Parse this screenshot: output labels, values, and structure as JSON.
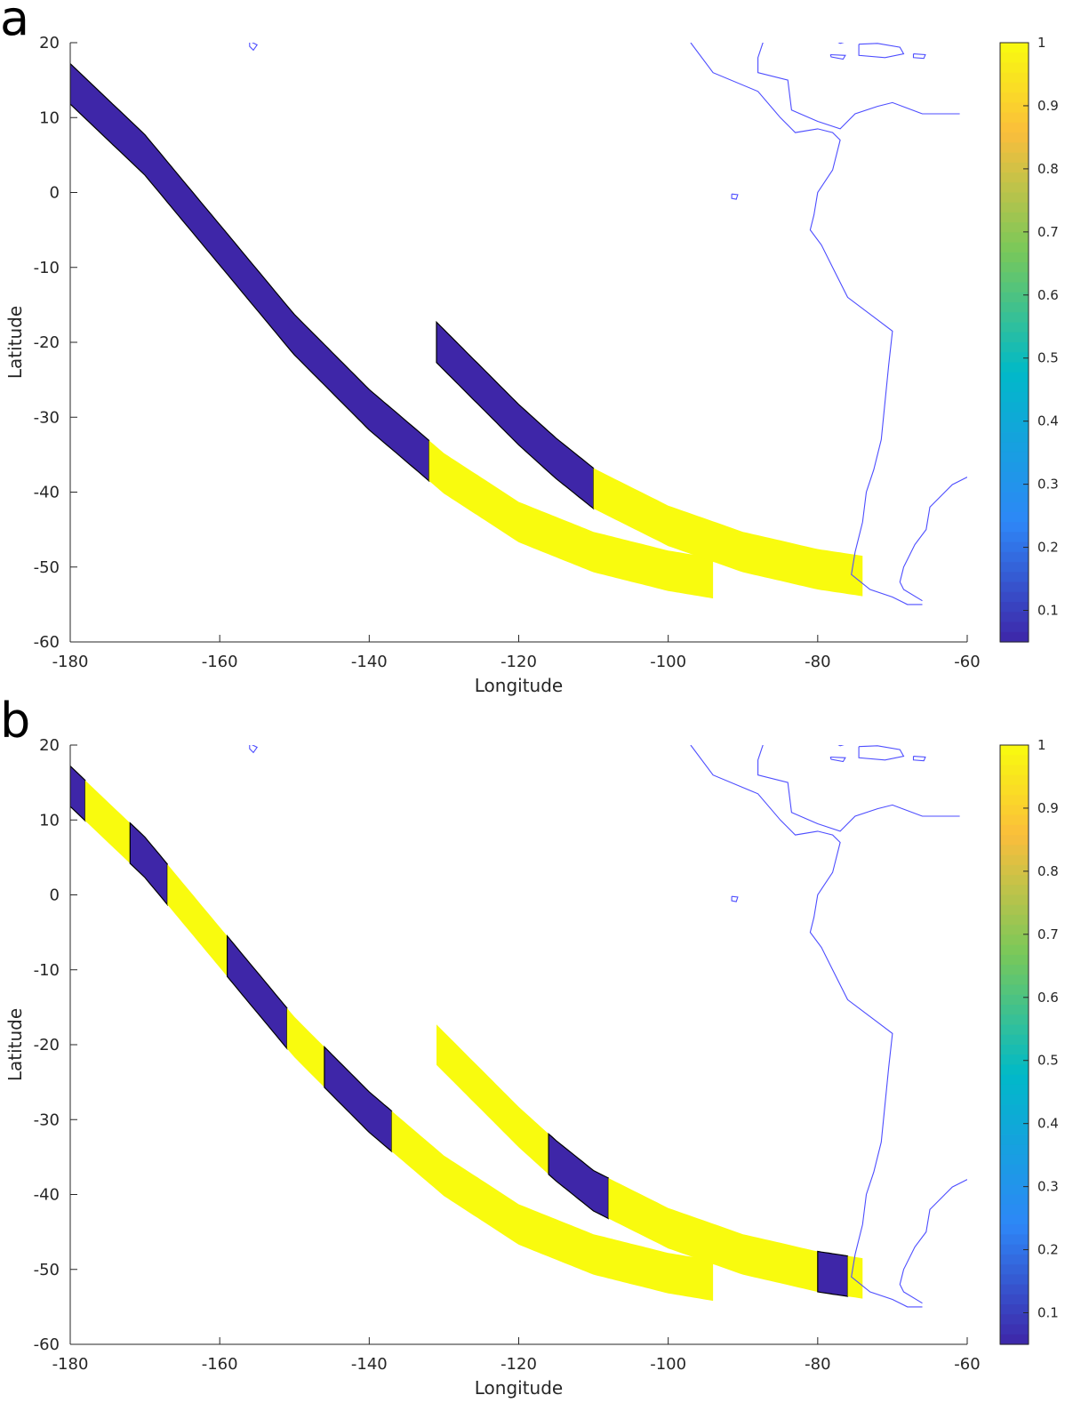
{
  "chart_data": [
    {
      "panel": "a",
      "type": "heatmap",
      "title": "",
      "xlabel": "Longitude",
      "ylabel": "Latitude",
      "xlim": [
        -180,
        -60
      ],
      "ylim": [
        -60,
        20
      ],
      "xticks": [
        "-180",
        "-160",
        "-140",
        "-120",
        "-100",
        "-80",
        "-60"
      ],
      "yticks": [
        "20",
        "10",
        "0",
        "-10",
        "-20",
        "-30",
        "-40",
        "-50",
        "-60"
      ],
      "colorbar": {
        "min": 0.05,
        "max": 1.0,
        "ticks": [
          "1",
          "0.9",
          "0.8",
          "0.7",
          "0.6",
          "0.5",
          "0.4",
          "0.3",
          "0.2",
          "0.1"
        ]
      },
      "colors": {
        "low": "#3e26a8",
        "high": "#f9fb0e",
        "coast": "#4d4dff",
        "contour": "#000000"
      },
      "swaths": [
        {
          "name": "west-swath",
          "track": [
            [
              -180,
              14.5
            ],
            [
              -170,
              5
            ],
            [
              -160,
              -7
            ],
            [
              -150,
              -19
            ],
            [
              -140,
              -29
            ],
            [
              -130,
              -37.5
            ],
            [
              -120,
              -44
            ],
            [
              -110,
              -48
            ],
            [
              -100,
              -50.5
            ],
            [
              -94,
              -51.5
            ]
          ],
          "segments": [
            {
              "value": 0.05,
              "from_lon": -180,
              "to_lon": -132
            },
            {
              "value": 1.0,
              "from_lon": -132,
              "to_lon": -94
            }
          ]
        },
        {
          "name": "east-swath",
          "track": [
            [
              -131,
              -20
            ],
            [
              -125,
              -26
            ],
            [
              -120,
              -31
            ],
            [
              -115,
              -35.5
            ],
            [
              -110,
              -39.5
            ],
            [
              -100,
              -44.5
            ],
            [
              -90,
              -48
            ],
            [
              -80,
              -50.3
            ],
            [
              -74,
              -51.2
            ]
          ],
          "segments": [
            {
              "value": 0.05,
              "from_lon": -131,
              "to_lon": -110
            },
            {
              "value": 1.0,
              "from_lon": -110,
              "to_lon": -74
            }
          ]
        }
      ]
    },
    {
      "panel": "b",
      "type": "heatmap",
      "title": "",
      "xlabel": "Longitude",
      "ylabel": "Latitude",
      "xlim": [
        -180,
        -60
      ],
      "ylim": [
        -60,
        20
      ],
      "xticks": [
        "-180",
        "-160",
        "-140",
        "-120",
        "-100",
        "-80",
        "-60"
      ],
      "yticks": [
        "20",
        "10",
        "0",
        "-10",
        "-20",
        "-30",
        "-40",
        "-50",
        "-60"
      ],
      "colorbar": {
        "min": 0.05,
        "max": 1.0,
        "ticks": [
          "1",
          "0.9",
          "0.8",
          "0.7",
          "0.6",
          "0.5",
          "0.4",
          "0.3",
          "0.2",
          "0.1"
        ]
      },
      "colors": {
        "low": "#3e26a8",
        "high": "#f9fb0e",
        "coast": "#4d4dff",
        "contour": "#000000"
      },
      "swaths": [
        {
          "name": "west-swath",
          "track": [
            [
              -180,
              14.5
            ],
            [
              -170,
              5
            ],
            [
              -160,
              -7
            ],
            [
              -150,
              -19
            ],
            [
              -140,
              -29
            ],
            [
              -130,
              -37.5
            ],
            [
              -120,
              -44
            ],
            [
              -110,
              -48
            ],
            [
              -100,
              -50.5
            ],
            [
              -94,
              -51.5
            ]
          ],
          "segments": [
            {
              "value": 0.05,
              "from_lon": -180,
              "to_lon": -178
            },
            {
              "value": 1.0,
              "from_lon": -178,
              "to_lon": -172
            },
            {
              "value": 0.05,
              "from_lon": -172,
              "to_lon": -167
            },
            {
              "value": 1.0,
              "from_lon": -167,
              "to_lon": -159
            },
            {
              "value": 0.05,
              "from_lon": -159,
              "to_lon": -151
            },
            {
              "value": 1.0,
              "from_lon": -151,
              "to_lon": -146
            },
            {
              "value": 0.05,
              "from_lon": -146,
              "to_lon": -137
            },
            {
              "value": 1.0,
              "from_lon": -137,
              "to_lon": -94
            }
          ]
        },
        {
          "name": "east-swath",
          "track": [
            [
              -131,
              -20
            ],
            [
              -125,
              -26
            ],
            [
              -120,
              -31
            ],
            [
              -115,
              -35.5
            ],
            [
              -110,
              -39.5
            ],
            [
              -100,
              -44.5
            ],
            [
              -90,
              -48
            ],
            [
              -80,
              -50.3
            ],
            [
              -74,
              -51.2
            ]
          ],
          "segments": [
            {
              "value": 1.0,
              "from_lon": -131,
              "to_lon": -116
            },
            {
              "value": 0.05,
              "from_lon": -116,
              "to_lon": -108
            },
            {
              "value": 1.0,
              "from_lon": -108,
              "to_lon": -80
            },
            {
              "value": 0.05,
              "from_lon": -80,
              "to_lon": -76
            },
            {
              "value": 1.0,
              "from_lon": -76,
              "to_lon": -74
            }
          ]
        }
      ]
    }
  ],
  "coastlines": [
    {
      "name": "central-south-america-west-coast",
      "points": [
        [
          -97,
          20
        ],
        [
          -94,
          16
        ],
        [
          -88,
          13.5
        ],
        [
          -85,
          10
        ],
        [
          -83,
          8
        ],
        [
          -80,
          8.5
        ],
        [
          -78,
          8
        ],
        [
          -77,
          7
        ],
        [
          -78,
          3
        ],
        [
          -80,
          0
        ],
        [
          -80.5,
          -3
        ],
        [
          -81,
          -5
        ],
        [
          -79.5,
          -7
        ],
        [
          -78,
          -10
        ],
        [
          -76,
          -14
        ],
        [
          -72,
          -17
        ],
        [
          -70,
          -18.5
        ],
        [
          -70.5,
          -23
        ],
        [
          -71,
          -28
        ],
        [
          -71.5,
          -33
        ],
        [
          -72.5,
          -37
        ],
        [
          -73.5,
          -40
        ],
        [
          -74,
          -44
        ],
        [
          -75,
          -48
        ],
        [
          -75.5,
          -51
        ],
        [
          -73,
          -53
        ],
        [
          -70,
          -54
        ],
        [
          -68,
          -55
        ],
        [
          -66,
          -55
        ]
      ]
    },
    {
      "name": "south-america-atlantic-coast",
      "points": [
        [
          -60,
          -38
        ],
        [
          -62,
          -39
        ],
        [
          -63,
          -40
        ],
        [
          -65,
          -42
        ],
        [
          -65.5,
          -45
        ],
        [
          -67,
          -47
        ],
        [
          -68.5,
          -50
        ],
        [
          -69,
          -52
        ],
        [
          -68.5,
          -53
        ],
        [
          -66,
          -54.5
        ]
      ]
    },
    {
      "name": "caribbean-coast",
      "points": [
        [
          -87,
          21
        ],
        [
          -88,
          18
        ],
        [
          -88,
          16
        ],
        [
          -84,
          15
        ],
        [
          -83.5,
          11
        ],
        [
          -80,
          9.5
        ],
        [
          -77,
          8.5
        ],
        [
          -75,
          10.5
        ],
        [
          -72,
          11.5
        ],
        [
          -70,
          12
        ],
        [
          -66,
          10.5
        ],
        [
          -61,
          10.5
        ]
      ]
    },
    {
      "name": "cuba",
      "points": [
        [
          -85,
          21.8
        ],
        [
          -82,
          22.8
        ],
        [
          -78,
          22.3
        ],
        [
          -75,
          20.5
        ],
        [
          -77,
          19.9
        ],
        [
          -80,
          21.5
        ],
        [
          -83,
          21.8
        ],
        [
          -85,
          21.8
        ]
      ]
    },
    {
      "name": "hispaniola",
      "points": [
        [
          -74.5,
          19.8
        ],
        [
          -72,
          19.9
        ],
        [
          -69,
          19.4
        ],
        [
          -68.5,
          18.5
        ],
        [
          -71,
          18.0
        ],
        [
          -74.5,
          18.3
        ],
        [
          -74.5,
          19.8
        ]
      ]
    },
    {
      "name": "jamaica",
      "points": [
        [
          -78.3,
          18.4
        ],
        [
          -76.3,
          18.3
        ],
        [
          -76.6,
          17.8
        ],
        [
          -78.2,
          18.1
        ],
        [
          -78.3,
          18.4
        ]
      ]
    },
    {
      "name": "puerto-rico",
      "points": [
        [
          -67.2,
          18.5
        ],
        [
          -65.6,
          18.4
        ],
        [
          -65.8,
          17.9
        ],
        [
          -67.2,
          18.0
        ],
        [
          -67.2,
          18.5
        ]
      ]
    },
    {
      "name": "galapagos",
      "points": [
        [
          -91.5,
          -0.2
        ],
        [
          -90.7,
          -0.3
        ],
        [
          -90.9,
          -0.9
        ],
        [
          -91.5,
          -0.8
        ],
        [
          -91.5,
          -0.2
        ]
      ]
    },
    {
      "name": "hawaii",
      "points": [
        [
          -156,
          20.2
        ],
        [
          -155,
          19.7
        ],
        [
          -155.5,
          19.0
        ],
        [
          -156,
          19.5
        ],
        [
          -156,
          20.2
        ]
      ]
    }
  ]
}
